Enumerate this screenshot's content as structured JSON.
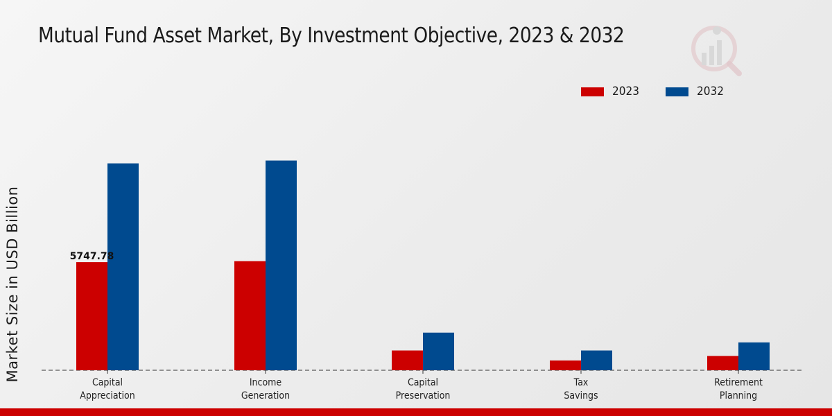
{
  "chart_data": {
    "type": "bar",
    "title": "Mutual Fund Asset Market, By Investment Objective, 2023 & 2032",
    "ylabel": "Market Size in USD Billion",
    "xlabel": "",
    "categories": [
      [
        "Capital",
        "Appreciation"
      ],
      [
        "Income",
        "Generation"
      ],
      [
        "Capital",
        "Preservation"
      ],
      [
        "Tax",
        "Savings"
      ],
      [
        "Retirement",
        "Planning"
      ]
    ],
    "series": [
      {
        "name": "2023",
        "color": "#cc0000",
        "values": [
          5747.78,
          5800,
          1050,
          520,
          760
        ]
      },
      {
        "name": "2032",
        "color": "#004a8f",
        "values": [
          11000,
          11150,
          2000,
          1050,
          1480
        ]
      }
    ],
    "data_labels": [
      {
        "series": 0,
        "index": 0,
        "text": "5747.78"
      }
    ],
    "ylim": [
      0,
      16000
    ],
    "grid": false,
    "legend_position": "top-right"
  }
}
